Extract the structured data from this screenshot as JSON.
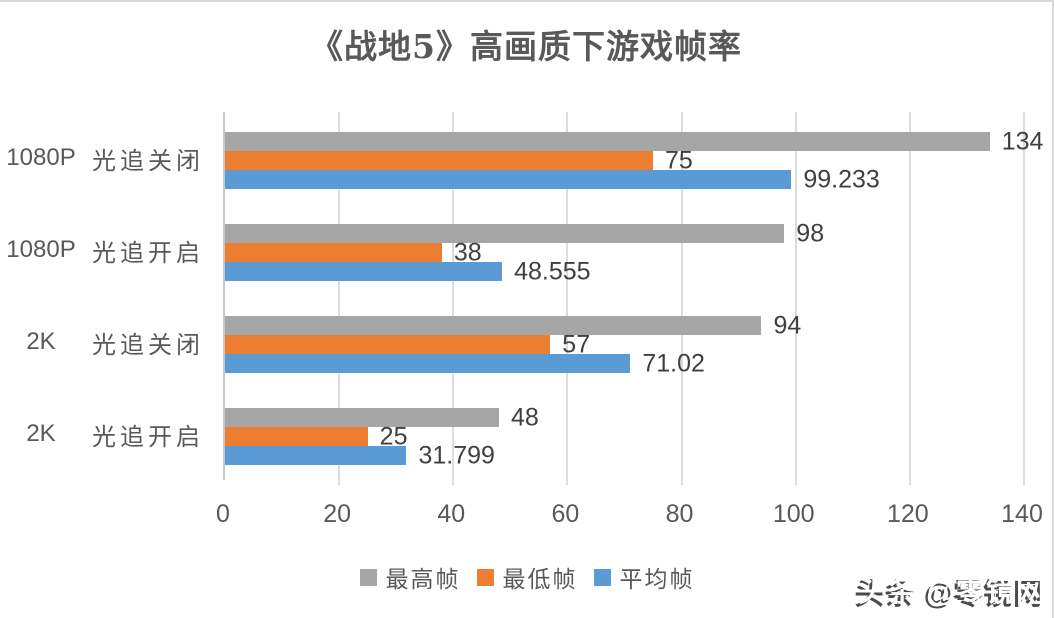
{
  "chart_data": {
    "type": "bar",
    "orientation": "horizontal",
    "title": "《战地5》高画质下游戏帧率",
    "categories": [
      "1080P 光追关闭",
      "1080P 光追开启",
      "2K 光追关闭",
      "2K 光追开启"
    ],
    "series": [
      {
        "name": "最高帧",
        "color": "#A6A6A6",
        "values": [
          134,
          98,
          94,
          48
        ]
      },
      {
        "name": "最低帧",
        "color": "#ED7D31",
        "values": [
          75,
          38,
          57,
          25
        ]
      },
      {
        "name": "平均帧",
        "color": "#5B9BD5",
        "values": [
          99.233,
          48.555,
          71.02,
          31.799
        ]
      }
    ],
    "data_labels": [
      "134",
      "75",
      "99.233",
      "98",
      "38",
      "48.555",
      "94",
      "57",
      "71.02",
      "48",
      "25",
      "31.799"
    ],
    "xlim": [
      0,
      140
    ],
    "x_tick_step": 20,
    "x_ticks": [
      "0",
      "20",
      "40",
      "60",
      "80",
      "100",
      "120",
      "140"
    ],
    "grid": "vertical-only",
    "legend_position": "bottom-center"
  },
  "colors": {
    "title_text": "#595959",
    "axis_text": "#595959",
    "data_label_text": "#404040",
    "gridline": "#dcdcdc",
    "axis_line": "#c8c8c8",
    "frame_border": "#d9d9d9"
  },
  "watermark": {
    "text": "头条 @零镜网"
  }
}
